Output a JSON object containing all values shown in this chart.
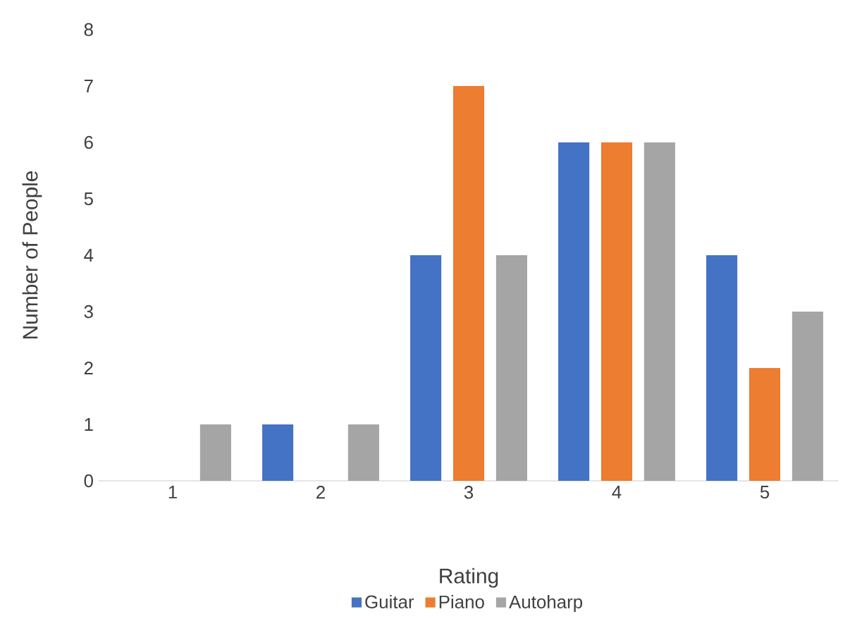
{
  "chart_data": {
    "type": "bar",
    "xlabel": "Rating",
    "ylabel": "Number of People",
    "categories": [
      "1",
      "2",
      "3",
      "4",
      "5"
    ],
    "series": [
      {
        "name": "Guitar",
        "color": "#4472c4",
        "values": [
          0,
          1,
          4,
          6,
          4
        ]
      },
      {
        "name": "Piano",
        "color": "#ed7d31",
        "values": [
          0,
          0,
          7,
          6,
          2
        ]
      },
      {
        "name": "Autoharp",
        "color": "#a5a5a5",
        "values": [
          1,
          1,
          4,
          6,
          3
        ]
      }
    ],
    "ylim": [
      0,
      8
    ],
    "yticks": [
      0,
      1,
      2,
      3,
      4,
      5,
      6,
      7,
      8
    ],
    "legend": "bottom"
  }
}
